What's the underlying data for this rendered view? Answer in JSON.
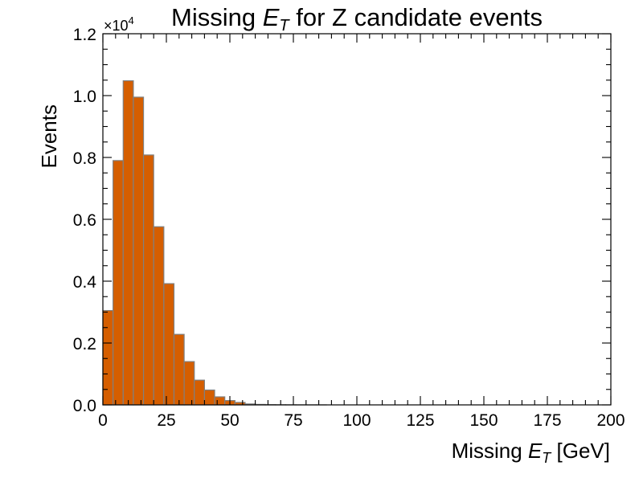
{
  "chart_data": {
    "type": "bar",
    "title_prefix": "Missing ",
    "title_math_base": "E",
    "title_math_sub": "T",
    "title_suffix": " for Z candidate events",
    "xlabel_prefix": "Missing ",
    "xlabel_math_base": "E",
    "xlabel_math_sub": "T",
    "xlabel_suffix": " [GeV]",
    "ylabel": "Events",
    "y_multiplier_base": "×10",
    "y_multiplier_exp": "4",
    "xlim": [
      0,
      200
    ],
    "ylim": [
      0,
      12000
    ],
    "bin_width": 4,
    "bin_edges_start": 0,
    "values": [
      3050,
      7900,
      10480,
      9950,
      8080,
      5760,
      3920,
      2280,
      1400,
      800,
      480,
      260,
      140,
      80,
      30,
      15,
      8,
      5,
      3,
      2,
      1,
      1,
      0,
      0,
      0,
      0,
      0,
      0,
      0,
      0,
      0,
      0,
      0,
      0,
      0,
      0,
      0,
      0,
      0,
      0,
      0,
      0,
      0,
      0,
      0,
      0,
      0,
      0,
      0,
      0
    ],
    "x_ticks": [
      "0",
      "25",
      "50",
      "75",
      "100",
      "125",
      "150",
      "175",
      "200"
    ],
    "y_ticks": [
      "0.0",
      "0.2",
      "0.4",
      "0.6",
      "0.8",
      "1.0",
      "1.2"
    ],
    "fill_color": "#d55e00",
    "edge_color": "#808080"
  }
}
